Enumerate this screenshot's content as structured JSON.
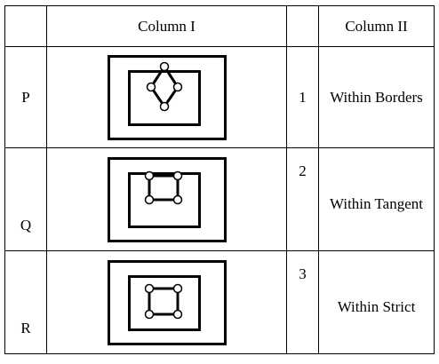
{
  "headers": {
    "col1": "Column I",
    "col2": "Column II"
  },
  "rows": [
    {
      "label": "P",
      "number": "1",
      "description": "Within Borders",
      "figure_icon": "nested-rectangles-diamond-icon"
    },
    {
      "label": "Q",
      "number": "2",
      "description": "Within Tangent",
      "figure_icon": "nested-rectangles-square-touching-icon"
    },
    {
      "label": "R",
      "number": "3",
      "description": "Within Strict",
      "figure_icon": "nested-rectangles-square-inside-icon"
    }
  ]
}
